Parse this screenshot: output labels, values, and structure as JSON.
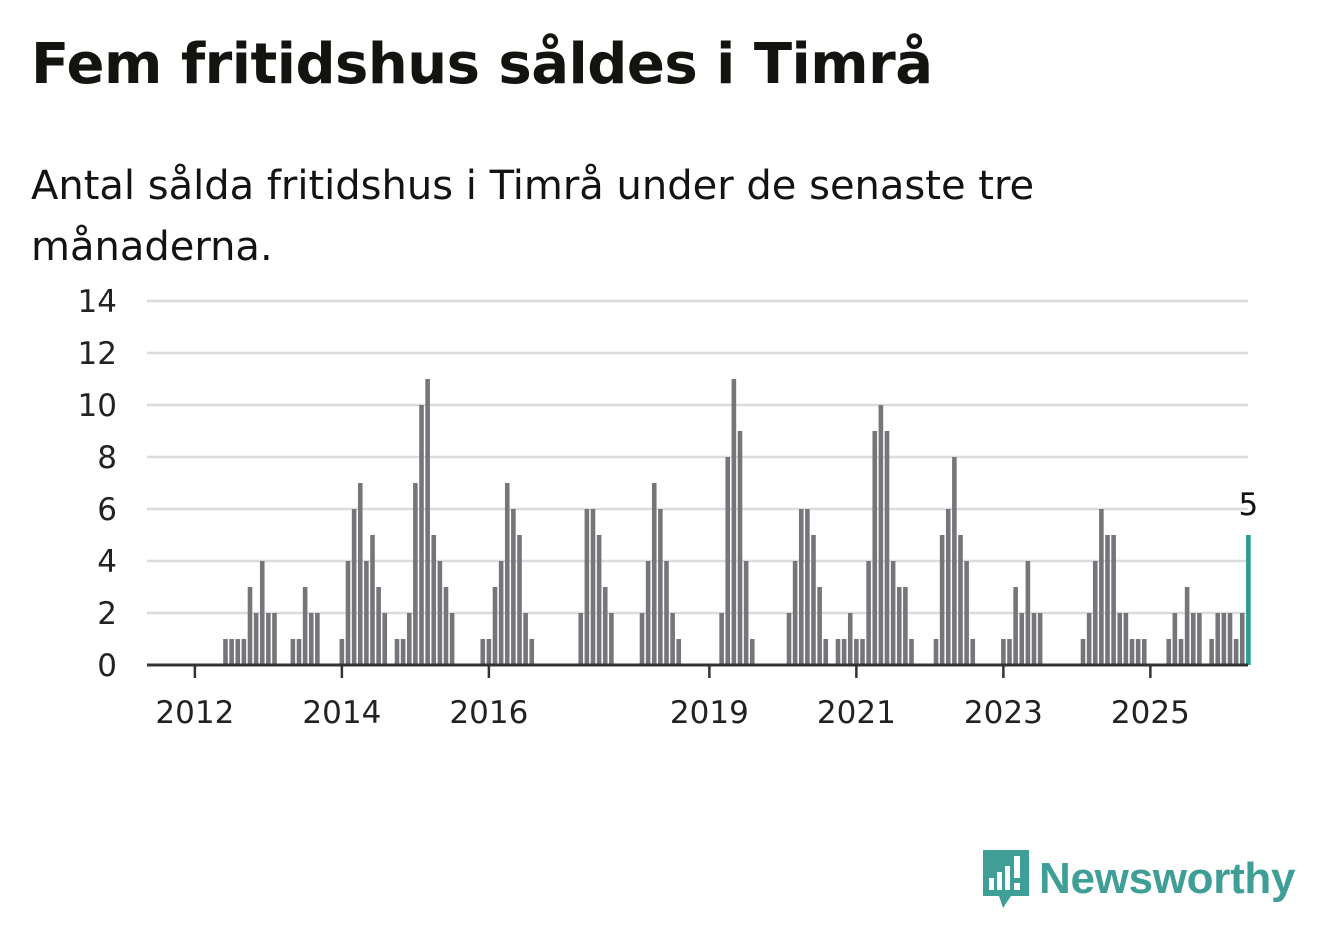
{
  "title": "Fem fritidshus såldes i Timrå",
  "subtitle": "Antal sålda fritidshus i Timrå under de senaste tre månaderna.",
  "brand": {
    "name": "Newsworthy",
    "icon": "newsworthy-logo-icon",
    "color": "#3f9f97"
  },
  "colors": {
    "bar": "#76767a",
    "highlight": "#2a9d93",
    "grid": "#dcdcdc",
    "axis": "#333333"
  },
  "chart_data": {
    "type": "bar",
    "ylim": [
      0,
      14
    ],
    "yticks": [
      "0",
      "2",
      "4",
      "6",
      "8",
      "10",
      "12",
      "14"
    ],
    "xtick_labels": [
      "2012",
      "2014",
      "2016",
      "2019",
      "2021",
      "2023",
      "2025"
    ],
    "x_start": "2011-10",
    "values": [
      0,
      0,
      0,
      0,
      0,
      0,
      0,
      0,
      1,
      1,
      1,
      1,
      3,
      2,
      4,
      2,
      2,
      0,
      0,
      1,
      1,
      3,
      2,
      2,
      0,
      0,
      0,
      1,
      4,
      6,
      7,
      4,
      5,
      3,
      2,
      0,
      1,
      1,
      2,
      7,
      10,
      11,
      5,
      4,
      3,
      2,
      0,
      0,
      0,
      0,
      1,
      1,
      3,
      4,
      7,
      6,
      5,
      2,
      1,
      0,
      0,
      0,
      0,
      0,
      0,
      0,
      2,
      6,
      6,
      5,
      3,
      2,
      0,
      0,
      0,
      0,
      2,
      4,
      7,
      6,
      4,
      2,
      1,
      0,
      0,
      0,
      0,
      0,
      0,
      2,
      8,
      11,
      9,
      4,
      1,
      0,
      0,
      0,
      0,
      0,
      2,
      4,
      6,
      6,
      5,
      3,
      1,
      0,
      1,
      1,
      2,
      1,
      1,
      4,
      9,
      10,
      9,
      4,
      3,
      3,
      1,
      0,
      0,
      0,
      1,
      5,
      6,
      8,
      5,
      4,
      1,
      0,
      0,
      0,
      0,
      1,
      1,
      3,
      2,
      4,
      2,
      2,
      0,
      0,
      0,
      0,
      0,
      0,
      1,
      2,
      4,
      6,
      5,
      5,
      2,
      2,
      1,
      1,
      1,
      0,
      0,
      0,
      1,
      2,
      1,
      3,
      2,
      2,
      0,
      1,
      2,
      2,
      2,
      1,
      2,
      5
    ],
    "highlight_last": true,
    "annotation": "5",
    "grid": true
  }
}
